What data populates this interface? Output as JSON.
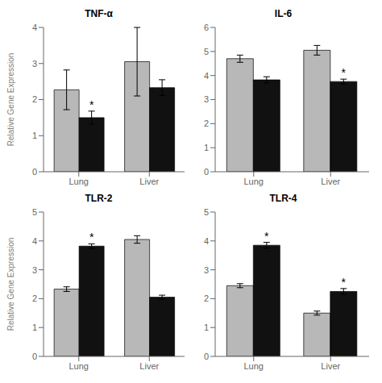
{
  "chart_data": [
    {
      "type": "bar",
      "title": "TNF-α",
      "ylabel": "Relative Gene Expression",
      "categories": [
        "Lung",
        "Liver"
      ],
      "ylim": [
        0,
        4
      ],
      "yticks": [
        0,
        1,
        2,
        3,
        4
      ],
      "grid": false,
      "series": [
        {
          "color": "#b8b8b8",
          "values": [
            2.27,
            3.05
          ],
          "errors": [
            0.55,
            0.95
          ]
        },
        {
          "color": "#111111",
          "values": [
            1.5,
            2.33
          ],
          "errors": [
            0.18,
            0.22
          ],
          "annotations": [
            "*",
            null
          ]
        }
      ]
    },
    {
      "type": "bar",
      "title": "IL-6",
      "categories": [
        "Lung",
        "Liver"
      ],
      "ylim": [
        0,
        6
      ],
      "yticks": [
        0,
        1,
        2,
        3,
        4,
        5,
        6
      ],
      "grid": false,
      "series": [
        {
          "color": "#b8b8b8",
          "values": [
            4.7,
            5.05
          ],
          "errors": [
            0.15,
            0.2
          ]
        },
        {
          "color": "#111111",
          "values": [
            3.82,
            3.75
          ],
          "errors": [
            0.13,
            0.1
          ],
          "annotations": [
            null,
            "*"
          ]
        }
      ]
    },
    {
      "type": "bar",
      "title": "TLR-2",
      "ylabel": "Relative Gene Expression",
      "categories": [
        "Lung",
        "Liver"
      ],
      "ylim": [
        0,
        5
      ],
      "yticks": [
        0,
        1,
        2,
        3,
        4,
        5
      ],
      "grid": false,
      "series": [
        {
          "color": "#b8b8b8",
          "values": [
            2.33,
            4.05
          ],
          "errors": [
            0.08,
            0.13
          ]
        },
        {
          "color": "#111111",
          "values": [
            3.82,
            2.05
          ],
          "errors": [
            0.08,
            0.07
          ],
          "annotations": [
            "*",
            null
          ]
        }
      ]
    },
    {
      "type": "bar",
      "title": "TLR-4",
      "categories": [
        "Lung",
        "Liver"
      ],
      "ylim": [
        0,
        5
      ],
      "yticks": [
        0,
        1,
        2,
        3,
        4,
        5
      ],
      "grid": false,
      "series": [
        {
          "color": "#b8b8b8",
          "values": [
            2.45,
            1.5
          ],
          "errors": [
            0.07,
            0.07
          ]
        },
        {
          "color": "#111111",
          "values": [
            3.85,
            2.25
          ],
          "errors": [
            0.1,
            0.1
          ],
          "annotations": [
            "*",
            "*"
          ]
        }
      ]
    }
  ]
}
